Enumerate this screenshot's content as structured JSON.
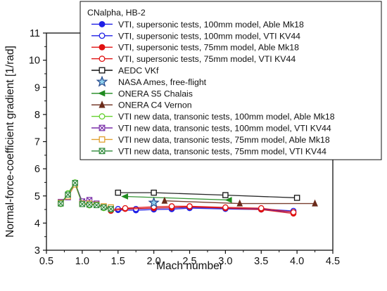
{
  "chart_data": {
    "type": "line",
    "xlabel": "Mach number",
    "ylabel": "Normal-force-coefficient gradient [1/rad]",
    "xlim": [
      0.5,
      4.5
    ],
    "ylim": [
      3,
      11
    ],
    "x_ticks": [
      "0.5",
      "1.0",
      "1.5",
      "2.0",
      "2.5",
      "3.0",
      "3.5",
      "4.0",
      "4.5"
    ],
    "y_ticks": [
      "3",
      "4",
      "5",
      "6",
      "7",
      "8",
      "9",
      "10",
      "11"
    ],
    "legend_title": "CNalpha, HB-2",
    "legend_position": "top-right",
    "series": [
      {
        "name": "VTI, supersonic tests, 100mm model, Able Mk18",
        "color": "#1f1fe6",
        "marker": "circle",
        "fill": "solid",
        "line": true,
        "x": [
          1.5,
          1.75,
          2.0,
          2.25,
          2.5,
          3.0,
          3.5,
          3.95
        ],
        "y": [
          4.48,
          4.47,
          4.5,
          4.51,
          4.55,
          4.52,
          4.5,
          4.4
        ]
      },
      {
        "name": "VTI, supersonic tests, 100mm model, VTI KV44",
        "color": "#1f1fe6",
        "marker": "circle",
        "fill": "open",
        "line": true,
        "x": [
          1.5,
          1.75,
          2.0,
          2.25,
          2.5,
          3.0,
          3.5,
          3.95
        ],
        "y": [
          4.52,
          4.52,
          4.55,
          4.56,
          4.58,
          4.55,
          4.52,
          4.45
        ]
      },
      {
        "name": "VTI, supersonic tests, 75mm model, Able Mk18",
        "color": "#e01010",
        "marker": "circle",
        "fill": "solid",
        "line": true,
        "x": [
          1.4,
          1.6,
          2.0,
          2.25,
          2.5,
          3.0,
          3.5,
          3.95
        ],
        "y": [
          4.45,
          4.52,
          4.55,
          4.57,
          4.6,
          4.55,
          4.5,
          4.35
        ]
      },
      {
        "name": "VTI, supersonic tests, 75mm model, VTI KV44",
        "color": "#e01010",
        "marker": "circle",
        "fill": "open",
        "line": true,
        "x": [
          1.4,
          1.6,
          2.0,
          2.25,
          2.5,
          3.0,
          3.5,
          3.95
        ],
        "y": [
          4.5,
          4.55,
          4.6,
          4.62,
          4.62,
          4.58,
          4.55,
          4.4
        ]
      },
      {
        "name": "AEDC VKf",
        "color": "#111111",
        "marker": "square",
        "fill": "open",
        "line": true,
        "x": [
          1.5,
          2.0,
          3.0,
          4.0
        ],
        "y": [
          5.12,
          5.12,
          5.03,
          4.93
        ]
      },
      {
        "name": "NASA Ames, free-flight",
        "color": "#2a4d8f",
        "marker": "star",
        "fill": "lightblue",
        "line": false,
        "x": [
          2.0
        ],
        "y": [
          4.75
        ]
      },
      {
        "name": "ONERA S5 Chalais",
        "color": "#1f8a1f",
        "marker": "triangle-left",
        "fill": "solid",
        "line": true,
        "x": [
          1.6,
          3.05
        ],
        "y": [
          4.98,
          4.85
        ]
      },
      {
        "name": "ONERA C4 Vernon",
        "color": "#6b2a1a",
        "marker": "triangle-up",
        "fill": "solid",
        "line": true,
        "x": [
          2.15,
          3.2,
          4.25
        ],
        "y": [
          4.82,
          4.72,
          4.72
        ]
      },
      {
        "name": "VTI new data, transonic tests, 100mm model, Able Mk18",
        "color": "#63d12d",
        "marker": "circle",
        "fill": "open",
        "line": true,
        "x": [
          0.7,
          0.8,
          0.9,
          1.0,
          1.1,
          1.2,
          1.3,
          1.4
        ],
        "y": [
          4.7,
          5.1,
          5.5,
          4.75,
          4.65,
          4.7,
          4.55,
          4.5
        ]
      },
      {
        "name": "VTI new data, transonic tests, 100mm model, VTI KV44",
        "color": "#7a2ea8",
        "marker": "x-square",
        "fill": "open",
        "line": true,
        "x": [
          0.7,
          0.8,
          0.9,
          1.0,
          1.1,
          1.2,
          1.3,
          1.4
        ],
        "y": [
          4.78,
          4.95,
          5.45,
          4.8,
          4.85,
          4.72,
          4.6,
          4.55
        ]
      },
      {
        "name": "VTI new data, transonic tests, 75mm model, Able Mk18",
        "color": "#e0a030",
        "marker": "square",
        "fill": "open",
        "line": true,
        "x": [
          0.7,
          0.8,
          0.9,
          1.0,
          1.1,
          1.2,
          1.3,
          1.4
        ],
        "y": [
          4.75,
          4.98,
          5.42,
          4.72,
          4.72,
          4.68,
          4.62,
          4.58
        ]
      },
      {
        "name": "VTI new data, transonic tests, 75mm model, VTI KV44",
        "color": "#2e8a3a",
        "marker": "x-square",
        "fill": "open",
        "line": true,
        "x": [
          0.7,
          0.8,
          0.9,
          1.0,
          1.1,
          1.2,
          1.3,
          1.4
        ],
        "y": [
          4.72,
          5.05,
          5.48,
          4.7,
          4.68,
          4.66,
          4.58,
          4.52
        ]
      }
    ]
  }
}
